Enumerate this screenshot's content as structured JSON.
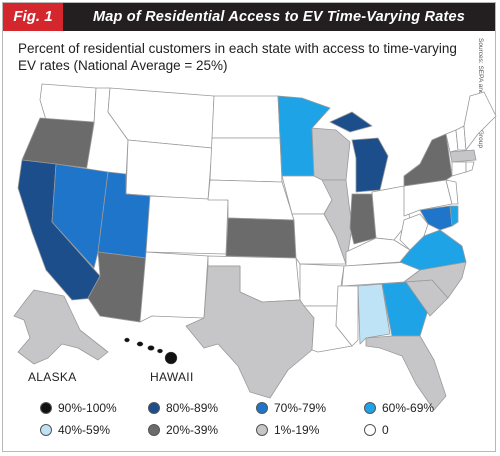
{
  "header": {
    "fig_label": "Fig. 1",
    "title": "Map of Residential Access to EV Time-Varying Rates"
  },
  "subtitle": "Percent of residential customers in each state with access to time-varying EV rates (National Average = 25%)",
  "source": "Sources: SEPA and The Brattle Group",
  "labels": {
    "alaska": "ALASKA",
    "hawaii": "HAWAII"
  },
  "colors": {
    "c90_100": "#111111",
    "c80_89": "#1c4e8c",
    "c70_79": "#1f75c9",
    "c60_69": "#1ea3e6",
    "c40_59": "#bfe3f6",
    "c20_39": "#6b6b6b",
    "c1_19": "#c6c6c8",
    "c0": "#ffffff"
  },
  "legend": [
    {
      "label": "90%-100%",
      "color": "#111111"
    },
    {
      "label": "80%-89%",
      "color": "#1c4e8c"
    },
    {
      "label": "70%-79%",
      "color": "#1f75c9"
    },
    {
      "label": "60%-69%",
      "color": "#1ea3e6"
    },
    {
      "label": "40%-59%",
      "color": "#bfe3f6"
    },
    {
      "label": "20%-39%",
      "color": "#6b6b6b"
    },
    {
      "label": "1%-19%",
      "color": "#c6c6c8"
    },
    {
      "label": "0",
      "color": "#ffffff"
    }
  ],
  "states": [
    {
      "name": "California",
      "bin": "80%-89%"
    },
    {
      "name": "Michigan",
      "bin": "80%-89%"
    },
    {
      "name": "Nevada",
      "bin": "70%-79%"
    },
    {
      "name": "Utah",
      "bin": "70%-79%"
    },
    {
      "name": "Maryland",
      "bin": "70%-79%"
    },
    {
      "name": "Minnesota",
      "bin": "60%-69%"
    },
    {
      "name": "Virginia",
      "bin": "60%-69%"
    },
    {
      "name": "Georgia",
      "bin": "60%-69%"
    },
    {
      "name": "Delaware",
      "bin": "60%-69%"
    },
    {
      "name": "Alabama",
      "bin": "40%-59%"
    },
    {
      "name": "Oregon",
      "bin": "20%-39%"
    },
    {
      "name": "Arizona",
      "bin": "20%-39%"
    },
    {
      "name": "Kansas",
      "bin": "20%-39%"
    },
    {
      "name": "Indiana",
      "bin": "20%-39%"
    },
    {
      "name": "New York",
      "bin": "20%-39%"
    },
    {
      "name": "Hawaii",
      "bin": "90%-100%"
    },
    {
      "name": "Texas",
      "bin": "1%-19%"
    },
    {
      "name": "Wisconsin",
      "bin": "1%-19%"
    },
    {
      "name": "Alaska",
      "bin": "1%-19%"
    },
    {
      "name": "Illinois",
      "bin": "1%-19%"
    },
    {
      "name": "North Carolina",
      "bin": "1%-19%"
    },
    {
      "name": "South Carolina",
      "bin": "1%-19%"
    },
    {
      "name": "Florida",
      "bin": "1%-19%"
    },
    {
      "name": "Massachusetts",
      "bin": "1%-19%"
    },
    {
      "name": "Washington",
      "bin": "0"
    },
    {
      "name": "Idaho",
      "bin": "0"
    },
    {
      "name": "Montana",
      "bin": "0"
    },
    {
      "name": "Wyoming",
      "bin": "0"
    },
    {
      "name": "Colorado",
      "bin": "0"
    },
    {
      "name": "New Mexico",
      "bin": "0"
    },
    {
      "name": "North Dakota",
      "bin": "0"
    },
    {
      "name": "South Dakota",
      "bin": "0"
    },
    {
      "name": "Nebraska",
      "bin": "0"
    },
    {
      "name": "Oklahoma",
      "bin": "0"
    },
    {
      "name": "Iowa",
      "bin": "0"
    },
    {
      "name": "Missouri",
      "bin": "0"
    },
    {
      "name": "Arkansas",
      "bin": "0"
    },
    {
      "name": "Louisiana",
      "bin": "0"
    },
    {
      "name": "Mississippi",
      "bin": "0"
    },
    {
      "name": "Tennessee",
      "bin": "0"
    },
    {
      "name": "Kentucky",
      "bin": "0"
    },
    {
      "name": "Ohio",
      "bin": "0"
    },
    {
      "name": "West Virginia",
      "bin": "0"
    },
    {
      "name": "Pennsylvania",
      "bin": "0"
    },
    {
      "name": "Maine",
      "bin": "0"
    }
  ]
}
